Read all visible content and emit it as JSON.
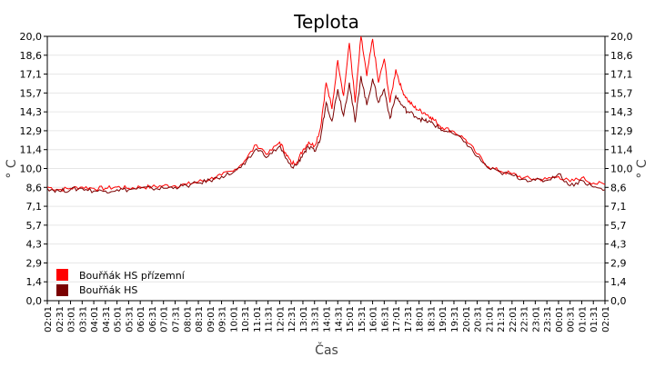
{
  "chart_data": {
    "type": "line",
    "title": "Teplota",
    "xlabel": "Čas",
    "ylabel": "° C",
    "ylim": [
      0,
      20
    ],
    "y_ticks": [
      "0,0",
      "1,4",
      "2,9",
      "4,3",
      "5,7",
      "7,1",
      "8,6",
      "10,0",
      "11,4",
      "12,9",
      "14,3",
      "15,7",
      "17,1",
      "18,6",
      "20,0"
    ],
    "x_ticks": [
      "02:01",
      "02:31",
      "03:01",
      "03:31",
      "04:01",
      "04:31",
      "05:01",
      "05:31",
      "06:01",
      "06:31",
      "07:01",
      "07:31",
      "08:01",
      "08:31",
      "09:01",
      "09:31",
      "10:01",
      "10:31",
      "11:01",
      "11:31",
      "12:01",
      "12:31",
      "13:01",
      "13:31",
      "14:01",
      "14:31",
      "15:01",
      "15:31",
      "16:01",
      "16:31",
      "17:01",
      "17:31",
      "18:01",
      "18:31",
      "19:01",
      "19:31",
      "20:01",
      "20:31",
      "21:01",
      "21:31",
      "22:01",
      "22:31",
      "23:01",
      "23:31",
      "00:01",
      "00:31",
      "01:01",
      "01:31",
      "02:01"
    ],
    "grid": true,
    "legend_position": "bottom-left",
    "series": [
      {
        "name": "Bouřňák HS přízemní",
        "color": "#ff0000",
        "x": [
          2.0,
          2.5,
          3.0,
          3.5,
          4.0,
          4.5,
          5.0,
          5.5,
          6.0,
          6.5,
          7.0,
          7.5,
          8.0,
          8.5,
          9.0,
          9.5,
          10.0,
          10.5,
          11.0,
          11.5,
          12.0,
          12.25,
          12.5,
          12.75,
          13.0,
          13.25,
          13.5,
          13.75,
          14.0,
          14.25,
          14.5,
          14.75,
          15.0,
          15.25,
          15.5,
          15.75,
          16.0,
          16.25,
          16.5,
          16.75,
          17.0,
          17.25,
          17.5,
          17.75,
          18.0,
          18.25,
          18.5,
          18.75,
          19.0,
          19.5,
          20.0,
          20.5,
          21.0,
          21.5,
          22.0,
          22.5,
          23.0,
          23.5,
          24.0,
          24.5,
          25.0,
          25.5,
          26.0
        ],
        "values": [
          8.6,
          8.4,
          8.5,
          8.6,
          8.5,
          8.5,
          8.6,
          8.5,
          8.6,
          8.6,
          8.7,
          8.7,
          8.8,
          9.0,
          9.2,
          9.5,
          9.8,
          10.6,
          11.8,
          11.1,
          12.0,
          11.2,
          10.4,
          10.5,
          11.4,
          12.0,
          11.7,
          13.0,
          16.5,
          14.5,
          18.2,
          15.5,
          19.5,
          15.0,
          20.0,
          17.0,
          19.8,
          16.5,
          18.3,
          15.0,
          17.5,
          16.0,
          15.2,
          14.7,
          14.4,
          14.2,
          13.9,
          13.5,
          13.1,
          12.8,
          12.2,
          11.1,
          10.1,
          9.8,
          9.6,
          9.3,
          9.2,
          9.2,
          9.4,
          9.0,
          9.3,
          8.9,
          8.8
        ]
      },
      {
        "name": "Bouřňák HS",
        "color": "#7a0000",
        "x": [
          2.0,
          2.5,
          3.0,
          3.5,
          4.0,
          4.5,
          5.0,
          5.5,
          6.0,
          6.5,
          7.0,
          7.5,
          8.0,
          8.5,
          9.0,
          9.5,
          10.0,
          10.5,
          11.0,
          11.5,
          12.0,
          12.25,
          12.5,
          12.75,
          13.0,
          13.25,
          13.5,
          13.75,
          14.0,
          14.25,
          14.5,
          14.75,
          15.0,
          15.25,
          15.5,
          15.75,
          16.0,
          16.25,
          16.5,
          16.75,
          17.0,
          17.25,
          17.5,
          17.75,
          18.0,
          18.25,
          18.5,
          18.75,
          19.0,
          19.5,
          20.0,
          20.5,
          21.0,
          21.5,
          22.0,
          22.5,
          23.0,
          23.5,
          24.0,
          24.5,
          25.0,
          25.5,
          26.0
        ],
        "values": [
          8.5,
          8.3,
          8.4,
          8.5,
          8.3,
          8.3,
          8.4,
          8.4,
          8.5,
          8.5,
          8.5,
          8.6,
          8.7,
          8.9,
          9.1,
          9.4,
          9.7,
          10.3,
          11.5,
          10.9,
          11.7,
          10.8,
          10.1,
          10.3,
          11.1,
          11.6,
          11.3,
          12.2,
          15.0,
          13.6,
          16.0,
          14.0,
          16.5,
          13.5,
          17.0,
          14.8,
          16.8,
          15.0,
          16.0,
          13.8,
          15.5,
          14.8,
          14.3,
          14.1,
          13.8,
          13.6,
          13.5,
          13.2,
          12.9,
          12.6,
          12.0,
          10.9,
          10.0,
          9.7,
          9.5,
          9.2,
          9.1,
          9.1,
          9.6,
          8.7,
          9.1,
          8.6,
          8.4
        ]
      }
    ]
  }
}
